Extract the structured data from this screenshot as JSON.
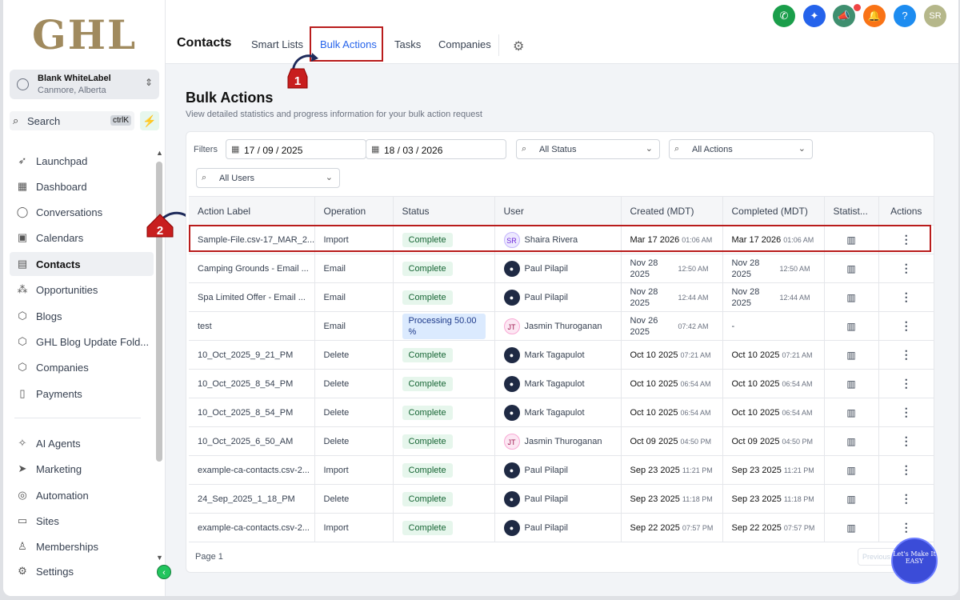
{
  "brand": {
    "logo": "GHL"
  },
  "account": {
    "name": "Blank WhiteLabel",
    "location": "Canmore, Alberta"
  },
  "search": {
    "label": "Search",
    "shortcut": "ctrlK"
  },
  "nav": [
    {
      "label": "Launchpad",
      "icon": "rocket-icon"
    },
    {
      "label": "Dashboard",
      "icon": "grid-icon"
    },
    {
      "label": "Conversations",
      "icon": "chat-icon"
    },
    {
      "label": "Calendars",
      "icon": "calendar-icon"
    },
    {
      "label": "Contacts",
      "icon": "contacts-icon",
      "active": true
    },
    {
      "label": "Opportunities",
      "icon": "funnel-icon"
    },
    {
      "label": "Blogs",
      "icon": "cube-icon"
    },
    {
      "label": "GHL Blog Update Fold...",
      "icon": "cube-icon"
    },
    {
      "label": "Companies",
      "icon": "cube-icon"
    },
    {
      "label": "Payments",
      "icon": "receipt-icon"
    },
    {
      "label": "AI Agents",
      "icon": "sparkle-icon"
    },
    {
      "label": "Marketing",
      "icon": "send-icon"
    },
    {
      "label": "Automation",
      "icon": "automation-icon"
    },
    {
      "label": "Sites",
      "icon": "sites-icon"
    },
    {
      "label": "Memberships",
      "icon": "award-icon"
    },
    {
      "label": "Settings",
      "icon": "gear-icon"
    }
  ],
  "topbar": {
    "title": "Contacts",
    "tabs": [
      "Smart Lists",
      "Bulk Actions",
      "Tasks",
      "Companies"
    ],
    "active_tab": "Bulk Actions"
  },
  "header_icons": [
    {
      "name": "phone-icon",
      "color": "#1a9e4a",
      "glyph": "✆"
    },
    {
      "name": "magic-icon",
      "color": "#2563eb",
      "glyph": "✦"
    },
    {
      "name": "megaphone-icon",
      "color": "#3f8f6f",
      "glyph": "📣"
    },
    {
      "name": "bell-icon",
      "color": "#f97316",
      "glyph": "🔔"
    },
    {
      "name": "help-icon",
      "color": "#1d8cf0",
      "glyph": "?"
    },
    {
      "name": "avatar",
      "color": "#b5b78a",
      "glyph": "SR"
    }
  ],
  "markers": {
    "one": "1",
    "two": "2"
  },
  "page": {
    "title": "Bulk Actions",
    "subtitle": "View detailed statistics and progress information for your bulk action request"
  },
  "filters": {
    "label": "Filters",
    "date_from": "17 / 09 / 2025",
    "date_to": "18 / 03 / 2026",
    "status": "All Status",
    "actions": "All Actions",
    "users": "All Users"
  },
  "table": {
    "headers": [
      "Action Label",
      "Operation",
      "Status",
      "User",
      "Created (MDT)",
      "Completed (MDT)",
      "Statist...",
      "Actions"
    ],
    "rows": [
      {
        "label": "Sample-File.csv-17_MAR_2...",
        "operation": "Import",
        "status": "Complete",
        "user": "Shaira Rivera",
        "avatar": "SR",
        "created_date": "Mar 17 2026",
        "created_time": "01:06 AM",
        "completed_date": "Mar 17 2026",
        "completed_time": "01:06 AM"
      },
      {
        "label": "Camping Grounds - Email ...",
        "operation": "Email",
        "status": "Complete",
        "user": "Paul Pilapil",
        "avatar": "photo",
        "created_date": "Nov 28 2025",
        "created_time": "12:50 AM",
        "completed_date": "Nov 28 2025",
        "completed_time": "12:50 AM",
        "wrap": true
      },
      {
        "label": "Spa Limited Offer - Email ...",
        "operation": "Email",
        "status": "Complete",
        "user": "Paul Pilapil",
        "avatar": "photo",
        "created_date": "Nov 28 2025",
        "created_time": "12:44 AM",
        "completed_date": "Nov 28 2025",
        "completed_time": "12:44 AM",
        "wrap": true
      },
      {
        "label": "test",
        "operation": "Email",
        "status": "Processing 50.00 %",
        "user": "Jasmin Thuroganan",
        "avatar": "JT",
        "created_date": "Nov 26 2025",
        "created_time": "07:42 AM",
        "completed_date": "-",
        "completed_time": "",
        "wrap": true
      },
      {
        "label": "10_Oct_2025_9_21_PM",
        "operation": "Delete",
        "status": "Complete",
        "user": "Mark Tagapulot",
        "avatar": "photo",
        "created_date": "Oct 10 2025",
        "created_time": "07:21 AM",
        "completed_date": "Oct 10 2025",
        "completed_time": "07:21 AM"
      },
      {
        "label": "10_Oct_2025_8_54_PM",
        "operation": "Delete",
        "status": "Complete",
        "user": "Mark Tagapulot",
        "avatar": "photo",
        "created_date": "Oct 10 2025",
        "created_time": "06:54 AM",
        "completed_date": "Oct 10 2025",
        "completed_time": "06:54 AM"
      },
      {
        "label": "10_Oct_2025_8_54_PM",
        "operation": "Delete",
        "status": "Complete",
        "user": "Mark Tagapulot",
        "avatar": "photo",
        "created_date": "Oct 10 2025",
        "created_time": "06:54 AM",
        "completed_date": "Oct 10 2025",
        "completed_time": "06:54 AM"
      },
      {
        "label": "10_Oct_2025_6_50_AM",
        "operation": "Delete",
        "status": "Complete",
        "user": "Jasmin Thuroganan",
        "avatar": "JT",
        "created_date": "Oct 09 2025",
        "created_time": "04:50 PM",
        "completed_date": "Oct 09 2025",
        "completed_time": "04:50 PM"
      },
      {
        "label": "example-ca-contacts.csv-2...",
        "operation": "Import",
        "status": "Complete",
        "user": "Paul Pilapil",
        "avatar": "photo",
        "created_date": "Sep 23 2025",
        "created_time": "11:21 PM",
        "completed_date": "Sep 23 2025",
        "completed_time": "11:21 PM"
      },
      {
        "label": "24_Sep_2025_1_18_PM",
        "operation": "Delete",
        "status": "Complete",
        "user": "Paul Pilapil",
        "avatar": "photo",
        "created_date": "Sep 23 2025",
        "created_time": "11:18 PM",
        "completed_date": "Sep 23 2025",
        "completed_time": "11:18 PM"
      },
      {
        "label": "example-ca-contacts.csv-2...",
        "operation": "Import",
        "status": "Complete",
        "user": "Paul Pilapil",
        "avatar": "photo",
        "created_date": "Sep 22 2025",
        "created_time": "07:57 PM",
        "completed_date": "Sep 22 2025",
        "completed_time": "07:57 PM"
      }
    ]
  },
  "pagination": {
    "info": "Page 1",
    "prev": "Previous"
  },
  "badge_widget": {
    "text": "Let's Make It EASY"
  }
}
